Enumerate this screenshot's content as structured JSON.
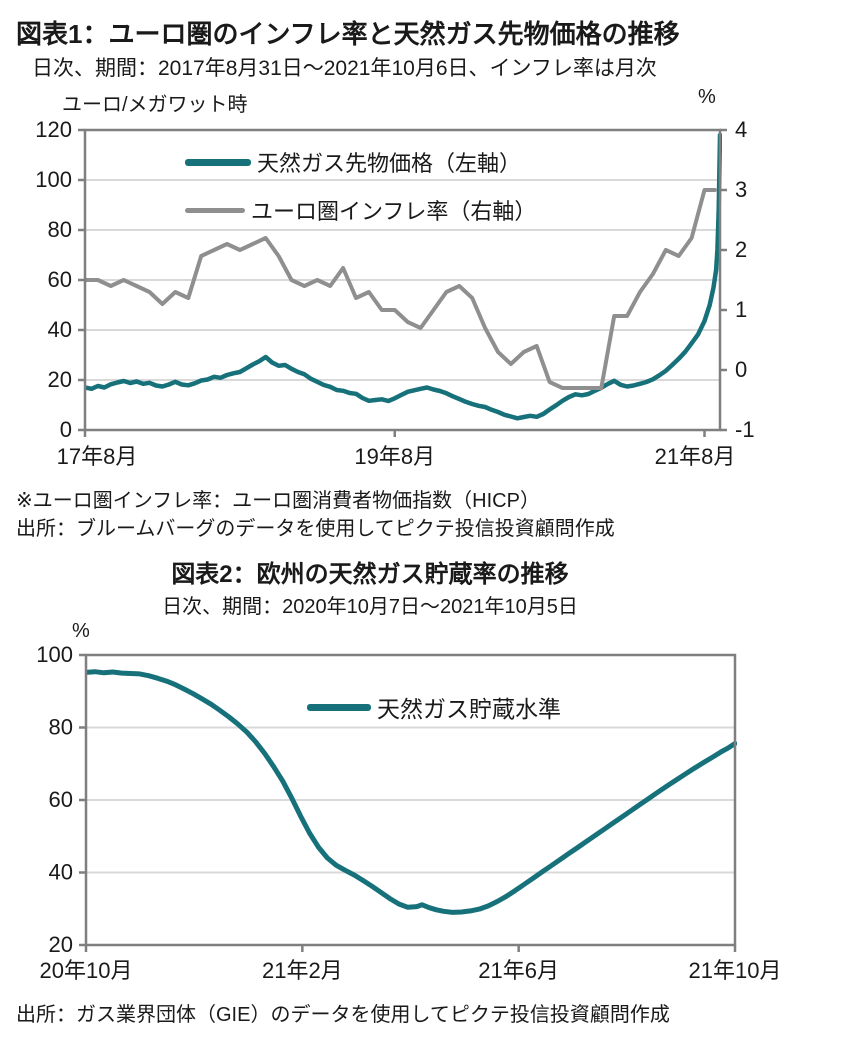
{
  "fig1": {
    "title": "図表1：ユーロ圏のインフレ率と天然ガス先物価格の推移",
    "subtitle": "日次、期間：2017年8月31日～2021年10月6日、インフレ率は月次",
    "unit_left": "ユーロ/メガワット時",
    "unit_right": "%",
    "note_definition": "※ユーロ圏インフレ率：ユーロ圏消費者物価指数（HICP）",
    "note_source": "出所：ブルームバーグのデータを使用してピクテ投信投資顧問作成"
  },
  "fig2": {
    "title": "図表2：欧州の天然ガス貯蔵率の推移",
    "subtitle": "日次、期間：2020年10月7日～2021年10月5日",
    "unit_left": "%",
    "note_source": "出所：ガス業界団体（GIE）のデータを使用してピクテ投信投資顧問作成"
  },
  "colors": {
    "teal": "#17717A",
    "gray": "#8F8F8F",
    "grid": "#D9D9D9",
    "frame": "#7F7F7F",
    "text": "#1A1A1A"
  },
  "chart_data": [
    {
      "type": "line",
      "title": "図表1：ユーロ圏のインフレ率と天然ガス先物価格の推移",
      "subtitle": "日次、期間：2017年8月31日～2021年10月6日、インフレ率は月次",
      "x_unit": "months since 2017-08",
      "x_range": [
        0,
        49.2
      ],
      "x_ticks": [
        {
          "pos": 0,
          "label": "17年8月"
        },
        {
          "pos": 24,
          "label": "19年8月"
        },
        {
          "pos": 48,
          "label": "21年8月"
        }
      ],
      "y_left": {
        "label": "ユーロ/メガワット時",
        "min": 0,
        "max": 120,
        "ticks": [
          120,
          100,
          80,
          60,
          40,
          20,
          0
        ],
        "grid": [
          100,
          80,
          60,
          40,
          20
        ]
      },
      "y_right": {
        "label": "%",
        "min": -1,
        "max": 4,
        "ticks": [
          4,
          3,
          2,
          1,
          0,
          -1
        ]
      },
      "legend_position": "top-left-inside",
      "series": [
        {
          "name": "天然ガス先物価格（左軸）",
          "axis": "left",
          "color": "#17717A",
          "width": 4.5,
          "points": [
            [
              0,
              17.0
            ],
            [
              0.5,
              16.5
            ],
            [
              1,
              17.6
            ],
            [
              1.5,
              17.0
            ],
            [
              2,
              18.3
            ],
            [
              2.5,
              19.0
            ],
            [
              3,
              19.6
            ],
            [
              3.5,
              18.8
            ],
            [
              4,
              19.4
            ],
            [
              4.5,
              18.5
            ],
            [
              5,
              18.9
            ],
            [
              5.5,
              17.8
            ],
            [
              6,
              17.4
            ],
            [
              6.5,
              18.2
            ],
            [
              7,
              19.3
            ],
            [
              7.5,
              18.2
            ],
            [
              8,
              17.9
            ],
            [
              8.5,
              18.7
            ],
            [
              9,
              19.8
            ],
            [
              9.5,
              20.2
            ],
            [
              10,
              21.3
            ],
            [
              10.5,
              20.9
            ],
            [
              11,
              22.0
            ],
            [
              11.5,
              22.7
            ],
            [
              12,
              23.2
            ],
            [
              12.5,
              24.7
            ],
            [
              13,
              26.2
            ],
            [
              13.5,
              27.5
            ],
            [
              14,
              29.2
            ],
            [
              14.5,
              27.0
            ],
            [
              15,
              25.7
            ],
            [
              15.5,
              26.0
            ],
            [
              16,
              24.5
            ],
            [
              16.5,
              23.2
            ],
            [
              17,
              22.3
            ],
            [
              17.5,
              20.5
            ],
            [
              18,
              19.3
            ],
            [
              18.5,
              18.0
            ],
            [
              19,
              17.3
            ],
            [
              19.5,
              16.0
            ],
            [
              20,
              15.7
            ],
            [
              20.5,
              14.8
            ],
            [
              21,
              14.5
            ],
            [
              21.5,
              12.8
            ],
            [
              22,
              11.7
            ],
            [
              22.5,
              12.0
            ],
            [
              23,
              12.3
            ],
            [
              23.5,
              11.6
            ],
            [
              24,
              12.7
            ],
            [
              24.5,
              14.0
            ],
            [
              25,
              15.3
            ],
            [
              25.5,
              15.9
            ],
            [
              26,
              16.5
            ],
            [
              26.5,
              17.0
            ],
            [
              27,
              16.2
            ],
            [
              27.5,
              15.6
            ],
            [
              28,
              14.7
            ],
            [
              28.5,
              13.5
            ],
            [
              29,
              12.4
            ],
            [
              29.5,
              11.3
            ],
            [
              30,
              10.4
            ],
            [
              30.5,
              9.7
            ],
            [
              31,
              9.2
            ],
            [
              31.5,
              8.1
            ],
            [
              32,
              7.2
            ],
            [
              32.5,
              6.1
            ],
            [
              33,
              5.4
            ],
            [
              33.5,
              4.7
            ],
            [
              34,
              5.2
            ],
            [
              34.5,
              5.7
            ],
            [
              35,
              5.3
            ],
            [
              35.5,
              6.4
            ],
            [
              36,
              8.2
            ],
            [
              36.5,
              9.9
            ],
            [
              37,
              11.7
            ],
            [
              37.5,
              13.2
            ],
            [
              38,
              14.3
            ],
            [
              38.5,
              13.9
            ],
            [
              39,
              14.4
            ],
            [
              39.5,
              15.7
            ],
            [
              40,
              16.9
            ],
            [
              40.5,
              18.4
            ],
            [
              41,
              19.7
            ],
            [
              41.5,
              18.1
            ],
            [
              42,
              17.4
            ],
            [
              42.5,
              17.8
            ],
            [
              43,
              18.5
            ],
            [
              43.5,
              19.2
            ],
            [
              44,
              20.3
            ],
            [
              44.5,
              21.9
            ],
            [
              45,
              23.7
            ],
            [
              45.5,
              26.0
            ],
            [
              46,
              28.5
            ],
            [
              46.5,
              31.3
            ],
            [
              47,
              34.7
            ],
            [
              47.5,
              38.3
            ],
            [
              48,
              43.6
            ],
            [
              48.4,
              50.0
            ],
            [
              48.7,
              57.0
            ],
            [
              48.9,
              64.0
            ],
            [
              49.0,
              72.0
            ],
            [
              49.1,
              88.0
            ],
            [
              49.2,
              118.0
            ]
          ]
        },
        {
          "name": "ユーロ圏インフレ率（右軸）",
          "axis": "right",
          "color": "#8F8F8F",
          "width": 4,
          "points": [
            [
              0,
              1.5
            ],
            [
              1,
              1.5
            ],
            [
              2,
              1.4
            ],
            [
              3,
              1.5
            ],
            [
              4,
              1.4
            ],
            [
              5,
              1.3
            ],
            [
              6,
              1.1
            ],
            [
              7,
              1.3
            ],
            [
              8,
              1.2
            ],
            [
              9,
              1.9
            ],
            [
              10,
              2.0
            ],
            [
              11,
              2.1
            ],
            [
              12,
              2.0
            ],
            [
              13,
              2.1
            ],
            [
              14,
              2.2
            ],
            [
              15,
              1.9
            ],
            [
              16,
              1.5
            ],
            [
              17,
              1.4
            ],
            [
              18,
              1.5
            ],
            [
              19,
              1.4
            ],
            [
              20,
              1.7
            ],
            [
              21,
              1.2
            ],
            [
              22,
              1.3
            ],
            [
              23,
              1.0
            ],
            [
              24,
              1.0
            ],
            [
              25,
              0.8
            ],
            [
              26,
              0.7
            ],
            [
              27,
              1.0
            ],
            [
              28,
              1.3
            ],
            [
              29,
              1.4
            ],
            [
              30,
              1.2
            ],
            [
              31,
              0.7
            ],
            [
              32,
              0.3
            ],
            [
              33,
              0.1
            ],
            [
              34,
              0.3
            ],
            [
              35,
              0.4
            ],
            [
              36,
              -0.2
            ],
            [
              37,
              -0.3
            ],
            [
              38,
              -0.3
            ],
            [
              39,
              -0.3
            ],
            [
              40,
              -0.3
            ],
            [
              41,
              0.9
            ],
            [
              42,
              0.9
            ],
            [
              43,
              1.3
            ],
            [
              44,
              1.6
            ],
            [
              45,
              2.0
            ],
            [
              46,
              1.9
            ],
            [
              47,
              2.2
            ],
            [
              48,
              3.0
            ],
            [
              48.8,
              3.0
            ]
          ]
        }
      ]
    },
    {
      "type": "line",
      "title": "図表2：欧州の天然ガス貯蔵率の推移",
      "subtitle": "日次、期間：2020年10月7日～2021年10月5日",
      "x_unit": "days since 2020-10-07",
      "x_range": [
        0,
        363
      ],
      "x_ticks": [
        {
          "pos": 0,
          "label": "20年10月"
        },
        {
          "pos": 121,
          "label": "21年2月"
        },
        {
          "pos": 242,
          "label": "21年6月"
        },
        {
          "pos": 363,
          "label": "21年10月"
        }
      ],
      "y_left": {
        "label": "%",
        "min": 20,
        "max": 100,
        "ticks": [
          100,
          80,
          60,
          40,
          20
        ],
        "grid": [
          80,
          60,
          40
        ]
      },
      "legend_position": "top-center-inside",
      "series": [
        {
          "name": "天然ガス貯蔵水準",
          "axis": "left",
          "color": "#17717A",
          "width": 5,
          "points": [
            [
              0,
              95.2
            ],
            [
              5,
              95.4
            ],
            [
              10,
              95.1
            ],
            [
              15,
              95.3
            ],
            [
              20,
              95.0
            ],
            [
              25,
              94.9
            ],
            [
              30,
              94.8
            ],
            [
              35,
              94.3
            ],
            [
              40,
              93.6
            ],
            [
              45,
              92.8
            ],
            [
              50,
              91.8
            ],
            [
              55,
              90.6
            ],
            [
              60,
              89.3
            ],
            [
              65,
              87.9
            ],
            [
              70,
              86.4
            ],
            [
              75,
              84.7
            ],
            [
              80,
              82.9
            ],
            [
              85,
              80.9
            ],
            [
              90,
              78.7
            ],
            [
              95,
              76.0
            ],
            [
              100,
              72.8
            ],
            [
              105,
              69.2
            ],
            [
              110,
              65.2
            ],
            [
              115,
              60.6
            ],
            [
              120,
              55.6
            ],
            [
              125,
              50.9
            ],
            [
              130,
              47.0
            ],
            [
              135,
              44.0
            ],
            [
              140,
              42.0
            ],
            [
              145,
              40.6
            ],
            [
              150,
              39.3
            ],
            [
              155,
              37.8
            ],
            [
              160,
              36.2
            ],
            [
              165,
              34.5
            ],
            [
              170,
              32.8
            ],
            [
              175,
              31.3
            ],
            [
              180,
              30.4
            ],
            [
              185,
              30.6
            ],
            [
              188,
              31.1
            ],
            [
              192,
              30.3
            ],
            [
              196,
              29.7
            ],
            [
              200,
              29.3
            ],
            [
              205,
              29.0
            ],
            [
              210,
              29.1
            ],
            [
              215,
              29.4
            ],
            [
              220,
              29.9
            ],
            [
              225,
              30.8
            ],
            [
              230,
              32.0
            ],
            [
              235,
              33.4
            ],
            [
              240,
              35.0
            ],
            [
              245,
              36.7
            ],
            [
              250,
              38.4
            ],
            [
              255,
              40.1
            ],
            [
              260,
              41.8
            ],
            [
              265,
              43.5
            ],
            [
              270,
              45.2
            ],
            [
              275,
              46.9
            ],
            [
              280,
              48.6
            ],
            [
              285,
              50.3
            ],
            [
              290,
              52.0
            ],
            [
              295,
              53.7
            ],
            [
              300,
              55.4
            ],
            [
              305,
              57.1
            ],
            [
              310,
              58.8
            ],
            [
              315,
              60.5
            ],
            [
              320,
              62.2
            ],
            [
              325,
              63.9
            ],
            [
              330,
              65.5
            ],
            [
              335,
              67.1
            ],
            [
              340,
              68.7
            ],
            [
              345,
              70.2
            ],
            [
              350,
              71.7
            ],
            [
              355,
              73.2
            ],
            [
              359,
              74.3
            ],
            [
              363,
              75.6
            ]
          ]
        }
      ]
    }
  ]
}
